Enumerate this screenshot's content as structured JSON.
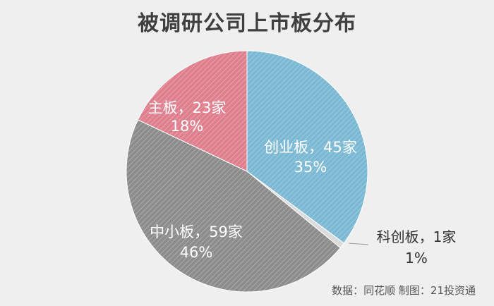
{
  "chart_data": {
    "type": "pie",
    "title": "被调研公司上市板分布",
    "slices": [
      {
        "name": "创业板",
        "count_label": "45家",
        "label": "创业板，45家",
        "percent_label": "35%",
        "value": 45,
        "color": "#7ab8d3"
      },
      {
        "name": "科创板",
        "count_label": "1家",
        "label": "科创板，1家",
        "percent_label": "1%",
        "value": 1,
        "color": "#d9d9d9"
      },
      {
        "name": "中小板",
        "count_label": "59家",
        "label": "中小板，59家",
        "percent_label": "46%",
        "value": 59,
        "color": "#8c8c8c"
      },
      {
        "name": "主板",
        "count_label": "23家",
        "label": "主板，23家",
        "percent_label": "18%",
        "value": 23,
        "color": "#df7f8e"
      }
    ],
    "start_angle_deg": 0,
    "direction": "clockwise",
    "hatched": true
  },
  "source": "数据：同花顺  制图：21投资通"
}
